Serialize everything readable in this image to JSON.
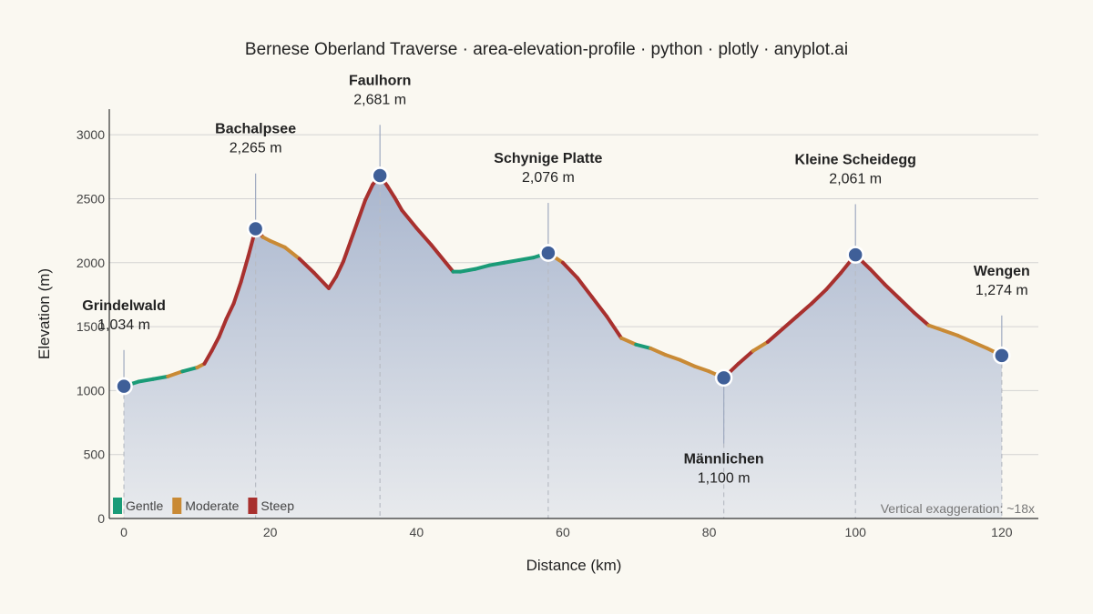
{
  "chart_data": {
    "type": "area",
    "title": "Bernese Oberland Traverse · area-elevation-profile · python · plotly · anyplot.ai",
    "xlabel": "Distance (km)",
    "ylabel": "Elevation (m)",
    "xlim": [
      -2,
      125
    ],
    "ylim": [
      0,
      3200
    ],
    "x_ticks": [
      0,
      20,
      40,
      60,
      80,
      100,
      120
    ],
    "y_ticks": [
      0,
      500,
      1000,
      1500,
      2000,
      2500,
      3000
    ],
    "grid": "horizontal",
    "legend_position": "bottom-left",
    "annotation": "Vertical exaggeration: ~18x",
    "colors": {
      "area_top": "#A9B6CE",
      "area_bottom": "#E8EAED",
      "gentle": "#1A9B77",
      "moderate": "#C98A35",
      "steep": "#A8302E",
      "marker": "#3F5F98",
      "background": "#FAF8F1"
    },
    "legend": [
      {
        "label": "Gentle",
        "key": "gentle"
      },
      {
        "label": "Moderate",
        "key": "moderate"
      },
      {
        "label": "Steep",
        "key": "steep"
      }
    ],
    "profile": [
      [
        0,
        1034
      ],
      [
        2,
        1070
      ],
      [
        4,
        1090
      ],
      [
        6,
        1110
      ],
      [
        8,
        1150
      ],
      [
        10,
        1180
      ],
      [
        11,
        1210
      ],
      [
        12,
        1310
      ],
      [
        13,
        1420
      ],
      [
        14,
        1560
      ],
      [
        15,
        1680
      ],
      [
        16,
        1850
      ],
      [
        17,
        2050
      ],
      [
        18,
        2265
      ],
      [
        19,
        2200
      ],
      [
        20,
        2170
      ],
      [
        22,
        2120
      ],
      [
        24,
        2030
      ],
      [
        26,
        1920
      ],
      [
        28,
        1800
      ],
      [
        29,
        1890
      ],
      [
        30,
        2010
      ],
      [
        31,
        2170
      ],
      [
        32,
        2330
      ],
      [
        33,
        2490
      ],
      [
        34,
        2610
      ],
      [
        35,
        2681
      ],
      [
        36,
        2600
      ],
      [
        37,
        2510
      ],
      [
        38,
        2410
      ],
      [
        40,
        2270
      ],
      [
        42,
        2140
      ],
      [
        44,
        2000
      ],
      [
        45,
        1930
      ],
      [
        46,
        1930
      ],
      [
        48,
        1950
      ],
      [
        50,
        1980
      ],
      [
        52,
        2000
      ],
      [
        54,
        2020
      ],
      [
        56,
        2040
      ],
      [
        58,
        2076
      ],
      [
        60,
        2000
      ],
      [
        62,
        1880
      ],
      [
        64,
        1730
      ],
      [
        66,
        1580
      ],
      [
        68,
        1410
      ],
      [
        70,
        1360
      ],
      [
        72,
        1330
      ],
      [
        74,
        1280
      ],
      [
        76,
        1240
      ],
      [
        78,
        1190
      ],
      [
        80,
        1150
      ],
      [
        82,
        1100
      ],
      [
        84,
        1210
      ],
      [
        86,
        1310
      ],
      [
        88,
        1380
      ],
      [
        90,
        1480
      ],
      [
        92,
        1580
      ],
      [
        94,
        1680
      ],
      [
        96,
        1790
      ],
      [
        98,
        1920
      ],
      [
        100,
        2061
      ],
      [
        102,
        1950
      ],
      [
        104,
        1830
      ],
      [
        106,
        1720
      ],
      [
        108,
        1610
      ],
      [
        110,
        1510
      ],
      [
        112,
        1470
      ],
      [
        114,
        1430
      ],
      [
        116,
        1380
      ],
      [
        118,
        1330
      ],
      [
        120,
        1274
      ]
    ],
    "waypoints": [
      {
        "name": "Grindelwald",
        "elevation_label": "1,034 m",
        "x": 0,
        "y": 1034,
        "label_y": 1630
      },
      {
        "name": "Bachalpsee",
        "elevation_label": "2,265 m",
        "x": 18,
        "y": 2265,
        "label_y": 3010
      },
      {
        "name": "Faulhorn",
        "elevation_label": "2,681 m",
        "x": 35,
        "y": 2681,
        "label_y": 3390
      },
      {
        "name": "Schynige Platte",
        "elevation_label": "2,076 m",
        "x": 58,
        "y": 2076,
        "label_y": 2780
      },
      {
        "name": "Männlichen",
        "elevation_label": "1,100 m",
        "x": 82,
        "y": 1100,
        "label_y": 430
      },
      {
        "name": "Kleine Scheidegg",
        "elevation_label": "2,061 m",
        "x": 100,
        "y": 2061,
        "label_y": 2770
      },
      {
        "name": "Wengen",
        "elevation_label": "1,274 m",
        "x": 120,
        "y": 1274,
        "label_y": 1900
      }
    ]
  }
}
